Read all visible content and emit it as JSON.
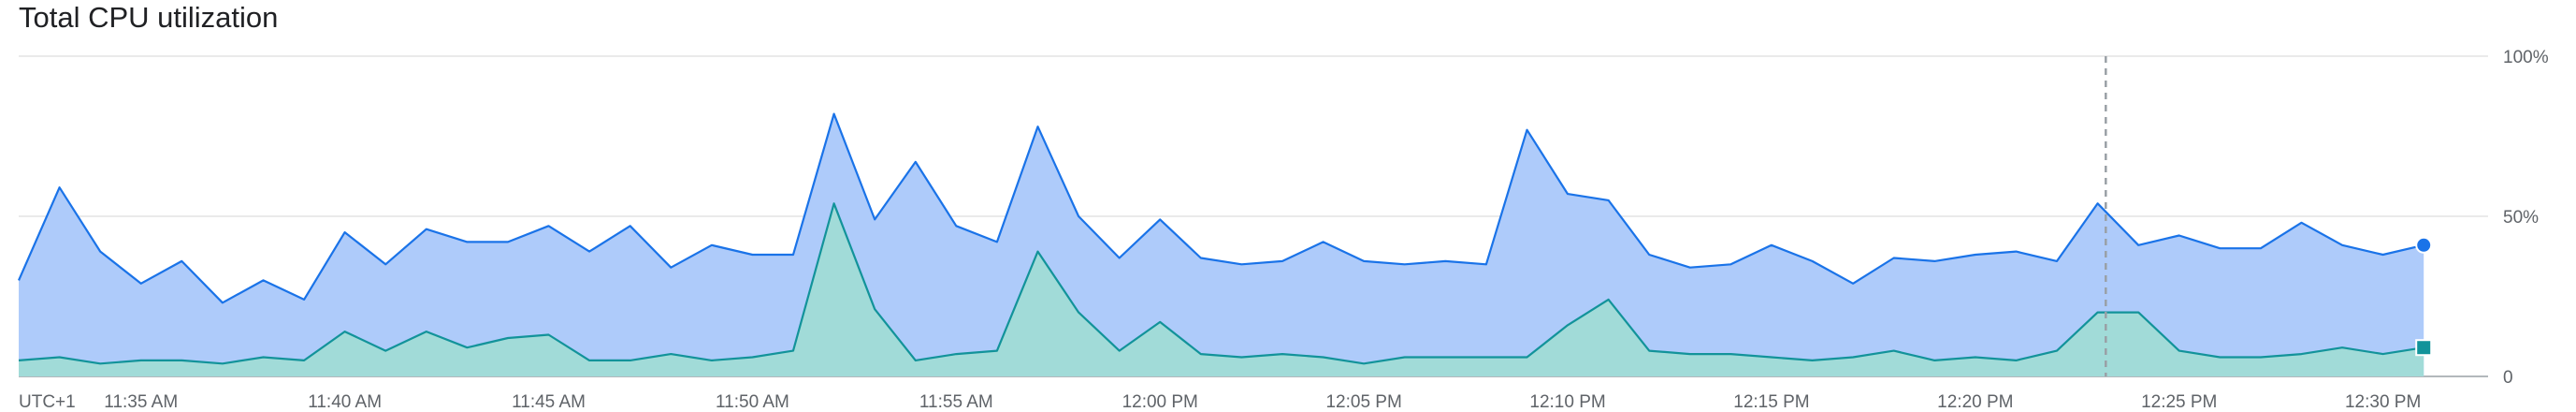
{
  "chart_data": {
    "type": "area",
    "title": "Total CPU utilization",
    "timezone_label": "UTC+1",
    "x_unit": "minutes from 11:32 AM",
    "xlim": [
      0,
      59
    ],
    "ylim": [
      0,
      100
    ],
    "grid": true,
    "y_ticks": [
      {
        "value": 100,
        "label": "100%"
      },
      {
        "value": 50,
        "label": "50%"
      },
      {
        "value": 0,
        "label": "0"
      }
    ],
    "x_ticks": [
      {
        "label": "11:35 AM",
        "minute": 3
      },
      {
        "label": "11:40 AM",
        "minute": 8
      },
      {
        "label": "11:45 AM",
        "minute": 13
      },
      {
        "label": "11:50 AM",
        "minute": 18
      },
      {
        "label": "11:55 AM",
        "minute": 23
      },
      {
        "label": "12:00 PM",
        "minute": 28
      },
      {
        "label": "12:05 PM",
        "minute": 33
      },
      {
        "label": "12:10 PM",
        "minute": 38
      },
      {
        "label": "12:15 PM",
        "minute": 43
      },
      {
        "label": "12:20 PM",
        "minute": 48
      },
      {
        "label": "12:25 PM",
        "minute": 53
      },
      {
        "label": "12:30 PM",
        "minute": 58
      }
    ],
    "cursor_minute": 51.2,
    "series": [
      {
        "color": "#1a73e8",
        "fill": "#aecbfa",
        "marker": "circle",
        "values": [
          30,
          59,
          39,
          29,
          36,
          23,
          30,
          24,
          45,
          35,
          46,
          42,
          42,
          47,
          39,
          47,
          34,
          41,
          38,
          38,
          82,
          49,
          67,
          47,
          42,
          78,
          50,
          37,
          49,
          37,
          35,
          36,
          42,
          36,
          35,
          36,
          35,
          77,
          57,
          55,
          38,
          34,
          35,
          41,
          36,
          29,
          37,
          36,
          38,
          39,
          36,
          54,
          41,
          44,
          40,
          40,
          48,
          41,
          38,
          41
        ]
      },
      {
        "color": "#12939a",
        "fill": "#a1dbd8",
        "marker": "square",
        "values": [
          5,
          6,
          4,
          5,
          5,
          4,
          6,
          5,
          14,
          8,
          14,
          9,
          12,
          13,
          5,
          5,
          7,
          5,
          6,
          8,
          54,
          21,
          5,
          7,
          8,
          39,
          20,
          8,
          17,
          7,
          6,
          7,
          6,
          4,
          6,
          6,
          6,
          6,
          16,
          24,
          8,
          7,
          7,
          6,
          5,
          6,
          8,
          5,
          6,
          5,
          8,
          20,
          20,
          8,
          6,
          6,
          7,
          9,
          7,
          9
        ]
      }
    ]
  }
}
